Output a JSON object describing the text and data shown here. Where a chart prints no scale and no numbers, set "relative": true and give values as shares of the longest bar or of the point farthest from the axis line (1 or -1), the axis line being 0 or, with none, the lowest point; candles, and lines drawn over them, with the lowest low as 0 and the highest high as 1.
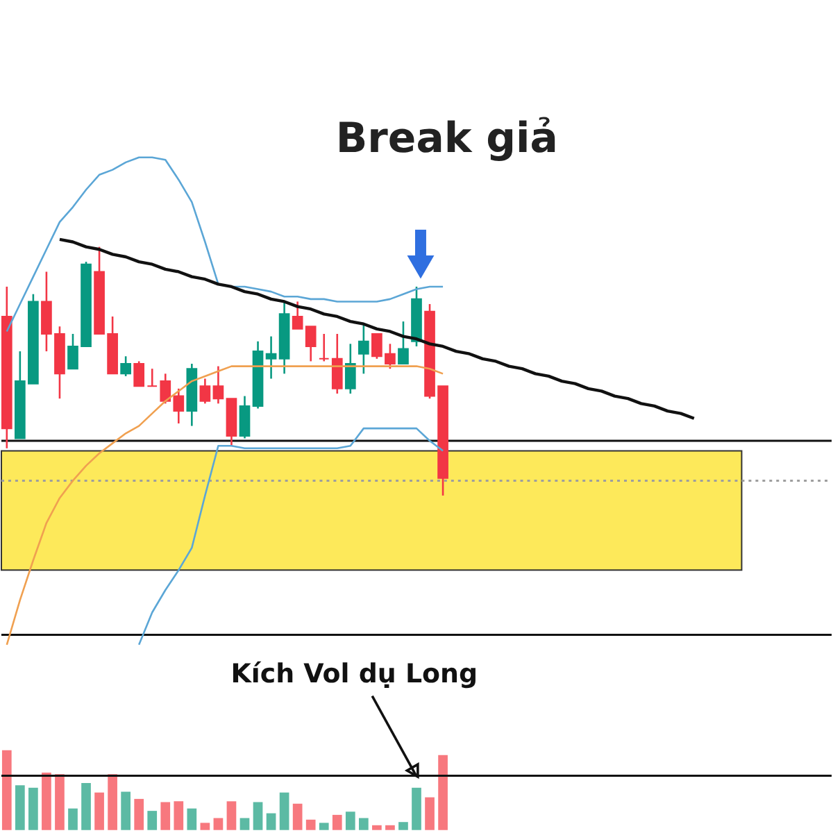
{
  "chart_data": [
    {
      "type": "candlestick",
      "relative": true,
      "grid": false,
      "legend": false,
      "categories": [
        null,
        null,
        null,
        null,
        null,
        null,
        null,
        null,
        null,
        null,
        null,
        null,
        null,
        null,
        null,
        null,
        null,
        null,
        null,
        null,
        null,
        null,
        null,
        null,
        null,
        null,
        null,
        null,
        null,
        null,
        null,
        null,
        null,
        null,
        null,
        null,
        null,
        null,
        null,
        null,
        null,
        null,
        null,
        null,
        null,
        null,
        null,
        null,
        null,
        null,
        null,
        null,
        null,
        null,
        null,
        null,
        null,
        null,
        null,
        null,
        null,
        null,
        null
      ],
      "ohlc": [
        [
          0.72,
          0.84,
          0.19,
          0.27
        ],
        [
          0.23,
          0.58,
          0.23,
          0.46
        ],
        [
          0.45,
          0.81,
          0.45,
          0.78
        ],
        [
          0.78,
          0.9,
          0.58,
          0.65
        ],
        [
          0.65,
          0.68,
          0.39,
          0.49
        ],
        [
          0.51,
          0.65,
          0.51,
          0.6
        ],
        [
          0.6,
          0.94,
          0.6,
          0.93
        ],
        [
          0.9,
          1.0,
          0.65,
          0.65
        ],
        [
          0.65,
          0.72,
          0.49,
          0.49
        ],
        [
          0.49,
          0.56,
          0.48,
          0.53
        ],
        [
          0.53,
          0.54,
          0.44,
          0.44
        ],
        [
          0.44,
          0.51,
          0.44,
          0.44
        ],
        [
          0.46,
          0.49,
          0.37,
          0.38
        ],
        [
          0.4,
          0.43,
          0.29,
          0.34
        ],
        [
          0.34,
          0.53,
          0.28,
          0.51
        ],
        [
          0.44,
          0.47,
          0.37,
          0.38
        ],
        [
          0.44,
          0.52,
          0.37,
          0.39
        ],
        [
          0.39,
          0.39,
          0.2,
          0.24
        ],
        [
          0.24,
          0.4,
          0.23,
          0.36
        ],
        [
          0.36,
          0.62,
          0.35,
          0.58
        ],
        [
          0.55,
          0.64,
          0.47,
          0.57
        ],
        [
          0.55,
          0.78,
          0.49,
          0.73
        ],
        [
          0.72,
          0.78,
          0.67,
          0.67
        ],
        [
          0.68,
          0.68,
          0.54,
          0.6
        ],
        [
          0.55,
          0.65,
          0.54,
          0.55
        ],
        [
          0.55,
          0.65,
          0.41,
          0.43
        ],
        [
          0.43,
          0.61,
          0.41,
          0.53
        ],
        [
          0.57,
          0.69,
          0.49,
          0.62
        ],
        [
          0.65,
          0.65,
          0.55,
          0.56
        ],
        [
          0.57,
          0.61,
          0.51,
          0.53
        ],
        [
          0.53,
          0.7,
          0.53,
          0.59
        ],
        [
          0.62,
          0.84,
          0.6,
          0.79
        ],
        [
          0.74,
          0.77,
          0.39,
          0.4
        ],
        [
          0.44,
          0.44,
          0.0,
          0.07
        ],
        null,
        null,
        null,
        null,
        null,
        null,
        null,
        null,
        null,
        null,
        null,
        null,
        null,
        null,
        null,
        null,
        null,
        null,
        null,
        null,
        null,
        null,
        null,
        null,
        null,
        null,
        null,
        null,
        null
      ],
      "colors": [
        "#f23645",
        "#089981",
        "#089981",
        "#f23645",
        "#f23645",
        "#089981",
        "#089981",
        "#f23645",
        "#f23645",
        "#089981",
        "#f23645",
        "#f23645",
        "#f23645",
        "#f23645",
        "#089981",
        "#f23645",
        "#f23645",
        "#f23645",
        "#089981",
        "#089981",
        "#089981",
        "#089981",
        "#f23645",
        "#f23645",
        "#f23645",
        "#f23645",
        "#089981",
        "#089981",
        "#f23645",
        "#f23645",
        "#089981",
        "#089981",
        "#f23645",
        "#f23645",
        null,
        null,
        null,
        null,
        null,
        null,
        null,
        null,
        null,
        null,
        null,
        null,
        null,
        null,
        null,
        null,
        null,
        null,
        null,
        null,
        null,
        null,
        null,
        null,
        null,
        null,
        null,
        null,
        null
      ],
      "series": [
        {
          "type": "line",
          "color": "#5ba6d6",
          "values": [
            0.66,
            0.77,
            0.88,
            0.99,
            1.1,
            1.16,
            1.23,
            1.29,
            1.31,
            1.34,
            1.36,
            1.36,
            1.35,
            1.27,
            1.18,
            1.02,
            0.85,
            0.84,
            0.84,
            0.83,
            0.82,
            0.8,
            0.8,
            0.79,
            0.79,
            0.78,
            0.78,
            0.78,
            0.78,
            0.79,
            0.81,
            0.83,
            0.84,
            0.84,
            null,
            null,
            null,
            null,
            null,
            null,
            null,
            null,
            null,
            null,
            null,
            null,
            null,
            null,
            null,
            null,
            null,
            null,
            null,
            null,
            null,
            null,
            null,
            null,
            null,
            null,
            null,
            null,
            null
          ]
        },
        {
          "type": "line",
          "color": "#5ba6d6",
          "values": [
            null,
            null,
            null,
            null,
            null,
            null,
            null,
            null,
            null,
            null,
            -0.6,
            -0.47,
            -0.38,
            -0.3,
            -0.21,
            0.0,
            0.2,
            0.2,
            0.19,
            0.19,
            0.19,
            0.19,
            0.19,
            0.19,
            0.19,
            0.19,
            0.2,
            0.27,
            0.27,
            0.27,
            0.27,
            0.27,
            0.22,
            0.18,
            null,
            null,
            null,
            null,
            null,
            null,
            null,
            null,
            null,
            null,
            null,
            null,
            null,
            null,
            null,
            null,
            null,
            null,
            null,
            null,
            null,
            null,
            null,
            null,
            null,
            null,
            null,
            null,
            null
          ]
        },
        {
          "type": "line",
          "color": "#f0a050",
          "values": [
            -0.6,
            -0.42,
            -0.26,
            -0.11,
            -0.01,
            0.06,
            0.12,
            0.17,
            0.21,
            0.25,
            0.28,
            0.33,
            0.38,
            0.42,
            0.46,
            0.48,
            0.5,
            0.52,
            0.52,
            0.52,
            0.52,
            0.52,
            0.52,
            0.52,
            0.52,
            0.52,
            0.52,
            0.52,
            0.52,
            0.52,
            0.52,
            0.52,
            0.51,
            0.49,
            null,
            null,
            null,
            null,
            null,
            null,
            null,
            null,
            null,
            null,
            null,
            null,
            null,
            null,
            null,
            null,
            null,
            null,
            null,
            null,
            null,
            null,
            null,
            null,
            null,
            null,
            null,
            null,
            null
          ]
        },
        {
          "type": "line",
          "color": "#111111",
          "values": [
            null,
            null,
            null,
            null,
            1.03,
            1.02,
            1.0,
            0.99,
            0.97,
            0.96,
            0.94,
            0.93,
            0.91,
            0.9,
            0.88,
            0.87,
            0.85,
            0.84,
            0.82,
            0.81,
            0.79,
            0.78,
            0.76,
            0.75,
            0.73,
            0.72,
            0.7,
            0.69,
            0.67,
            0.66,
            0.64,
            0.63,
            0.61,
            0.6,
            0.58,
            0.57,
            0.55,
            0.54,
            0.52,
            0.51,
            0.49,
            0.48,
            0.46,
            0.45,
            0.43,
            0.42,
            0.4,
            0.39,
            0.37,
            0.36,
            0.34,
            0.33,
            0.31,
            null,
            null,
            null,
            null,
            null,
            null,
            null,
            null,
            null,
            null
          ]
        }
      ],
      "ref_lines": [
        {
          "axis": "y",
          "value": 0.22,
          "color": "#111111"
        },
        {
          "axis": "y",
          "value": -0.56,
          "color": "#111111"
        },
        {
          "axis": "y",
          "value": 0.06,
          "color": "#9e9e9e",
          "line_style": "dotted"
        }
      ],
      "bands": [
        {
          "axis": "y",
          "from": -0.3,
          "to": 0.18,
          "color": "#fde95a"
        }
      ],
      "annotations": [
        "Break giả"
      ]
    },
    {
      "type": "bar",
      "relative": true,
      "grid": false,
      "legend": false,
      "categories": [
        null,
        null,
        null,
        null,
        null,
        null,
        null,
        null,
        null,
        null,
        null,
        null,
        null,
        null,
        null,
        null,
        null,
        null,
        null,
        null,
        null,
        null,
        null,
        null,
        null,
        null,
        null,
        null,
        null,
        null,
        null,
        null,
        null,
        null,
        null,
        null,
        null,
        null,
        null,
        null,
        null,
        null,
        null,
        null,
        null,
        null,
        null,
        null,
        null,
        null,
        null,
        null,
        null,
        null,
        null,
        null,
        null,
        null,
        null,
        null,
        null,
        null,
        null
      ],
      "values": [
        1.0,
        0.56,
        0.53,
        0.72,
        0.7,
        0.27,
        0.59,
        0.47,
        0.7,
        0.48,
        0.39,
        0.24,
        0.35,
        0.36,
        0.27,
        0.09,
        0.15,
        0.36,
        0.15,
        0.35,
        0.21,
        0.47,
        0.33,
        0.13,
        0.09,
        0.19,
        0.23,
        0.15,
        0.06,
        0.06,
        0.1,
        0.53,
        0.41,
        0.94,
        null,
        null,
        null,
        null,
        null,
        null,
        null,
        null,
        null,
        null,
        null,
        null,
        null,
        null,
        null,
        null,
        null,
        null,
        null,
        null,
        null,
        null,
        null,
        null,
        null,
        null,
        null,
        null,
        null
      ],
      "colors": [
        "#f7787e",
        "#5cbaa4",
        "#5cbaa4",
        "#f7787e",
        "#f7787e",
        "#5cbaa4",
        "#5cbaa4",
        "#f7787e",
        "#f7787e",
        "#5cbaa4",
        "#f7787e",
        "#5cbaa4",
        "#f7787e",
        "#f7787e",
        "#5cbaa4",
        "#f7787e",
        "#f7787e",
        "#f7787e",
        "#5cbaa4",
        "#5cbaa4",
        "#5cbaa4",
        "#5cbaa4",
        "#f7787e",
        "#f7787e",
        "#5cbaa4",
        "#f7787e",
        "#5cbaa4",
        "#5cbaa4",
        "#f7787e",
        "#f7787e",
        "#5cbaa4",
        "#5cbaa4",
        "#f7787e",
        "#f7787e",
        null,
        null,
        null,
        null,
        null,
        null,
        null,
        null,
        null,
        null,
        null,
        null,
        null,
        null,
        null,
        null,
        null,
        null,
        null,
        null,
        null,
        null,
        null,
        null,
        null,
        null,
        null,
        null,
        null
      ],
      "ref_lines": [
        {
          "axis": "y",
          "value": 0.68,
          "color": "#111111"
        }
      ],
      "annotations": [
        "Kích Vol dụ Long"
      ]
    }
  ]
}
